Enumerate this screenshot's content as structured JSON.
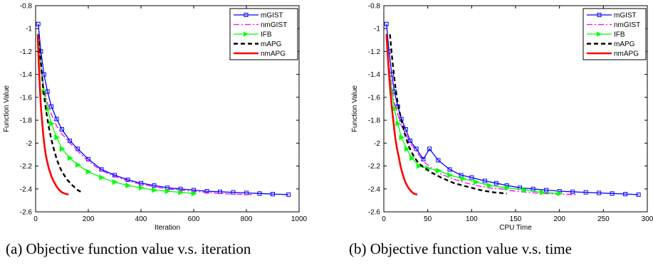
{
  "captions": {
    "a": "(a) Objective function value v.s. iteration",
    "b": "(b) Objective function value v.s. time"
  },
  "chart_data": [
    {
      "type": "line",
      "title": "",
      "xlabel": "Iteration",
      "ylabel": "Function Value",
      "xlim": [
        0,
        1000
      ],
      "ylim": [
        -2.6,
        -0.8
      ],
      "xticks": [
        0,
        200,
        400,
        600,
        800,
        1000
      ],
      "yticks": [
        -2.6,
        -2.4,
        -2.2,
        -2,
        -1.8,
        -1.6,
        -1.4,
        -1.2,
        -1,
        -0.8
      ],
      "xtick_labels": [
        "0",
        "200",
        "400",
        "600",
        "800",
        "1000"
      ],
      "ytick_labels": [
        "-2.6",
        "-2.4",
        "-2.2",
        "-2",
        "-1.8",
        "-1.6",
        "-1.4",
        "-1.2",
        "-1",
        "-0.8"
      ],
      "grid": false,
      "legend_position": "top-right",
      "series": [
        {
          "name": "mGIST",
          "color": "#0000ff",
          "dash": "solid",
          "marker": "square",
          "x": [
            10,
            20,
            32,
            45,
            60,
            80,
            100,
            130,
            160,
            200,
            250,
            300,
            350,
            400,
            450,
            500,
            550,
            600,
            650,
            700,
            750,
            800,
            850,
            900,
            960
          ],
          "y": [
            -0.96,
            -1.2,
            -1.4,
            -1.55,
            -1.68,
            -1.79,
            -1.88,
            -1.98,
            -2.05,
            -2.14,
            -2.23,
            -2.28,
            -2.32,
            -2.35,
            -2.37,
            -2.39,
            -2.4,
            -2.41,
            -2.42,
            -2.425,
            -2.43,
            -2.435,
            -2.44,
            -2.445,
            -2.45
          ]
        },
        {
          "name": "nmGIST",
          "color": "#ff00ff",
          "dash": "dashdot",
          "marker": "none",
          "x": [
            10,
            20,
            30,
            45,
            60,
            80,
            100,
            130,
            160,
            200,
            250,
            300,
            350,
            400,
            450,
            500,
            550,
            600,
            650,
            700,
            750,
            820
          ],
          "y": [
            -1.05,
            -1.32,
            -1.5,
            -1.65,
            -1.75,
            -1.85,
            -1.92,
            -2.0,
            -2.07,
            -2.16,
            -2.24,
            -2.29,
            -2.33,
            -2.36,
            -2.38,
            -2.4,
            -2.41,
            -2.42,
            -2.43,
            -2.44,
            -2.445,
            -2.45
          ]
        },
        {
          "name": "IFB",
          "color": "#00ff00",
          "dash": "solid",
          "marker": "triangle-right",
          "x": [
            10,
            20,
            32,
            45,
            60,
            80,
            100,
            130,
            160,
            200,
            250,
            300,
            350,
            400,
            450,
            500,
            550,
            600
          ],
          "y": [
            -1.04,
            -1.35,
            -1.55,
            -1.7,
            -1.83,
            -1.95,
            -2.05,
            -2.13,
            -2.19,
            -2.25,
            -2.3,
            -2.34,
            -2.37,
            -2.39,
            -2.41,
            -2.42,
            -2.43,
            -2.44
          ]
        },
        {
          "name": "mAPG",
          "color": "#000000",
          "dash": "dash",
          "marker": "none",
          "x": [
            10,
            20,
            30,
            40,
            50,
            60,
            70,
            80,
            90,
            100,
            120,
            140,
            160,
            175
          ],
          "y": [
            -1.05,
            -1.3,
            -1.55,
            -1.72,
            -1.86,
            -1.97,
            -2.06,
            -2.14,
            -2.2,
            -2.25,
            -2.32,
            -2.37,
            -2.41,
            -2.43
          ]
        },
        {
          "name": "nmAPG",
          "color": "#ff0000",
          "dash": "solid",
          "marker": "none",
          "x": [
            8,
            12,
            16,
            20,
            25,
            30,
            35,
            40,
            50,
            60,
            70,
            80,
            90,
            100,
            110,
            125
          ],
          "y": [
            -1.05,
            -1.3,
            -1.5,
            -1.68,
            -1.82,
            -1.95,
            -2.05,
            -2.12,
            -2.22,
            -2.29,
            -2.34,
            -2.38,
            -2.41,
            -2.43,
            -2.44,
            -2.45
          ]
        }
      ]
    },
    {
      "type": "line",
      "title": "",
      "xlabel": "CPU Time",
      "ylabel": "Function Value",
      "xlim": [
        0,
        300
      ],
      "ylim": [
        -2.6,
        -0.8
      ],
      "xticks": [
        0,
        50,
        100,
        150,
        200,
        250,
        300
      ],
      "yticks": [
        -2.6,
        -2.4,
        -2.2,
        -2,
        -1.8,
        -1.6,
        -1.4,
        -1.2,
        -1,
        -0.8
      ],
      "xtick_labels": [
        "0",
        "50",
        "100",
        "150",
        "200",
        "250",
        "300"
      ],
      "ytick_labels": [
        "-2.6",
        "-2.4",
        "-2.2",
        "-2",
        "-1.8",
        "-1.6",
        "-1.4",
        "-1.2",
        "-1",
        "-0.8"
      ],
      "grid": false,
      "legend_position": "top-right",
      "series": [
        {
          "name": "mGIST",
          "color": "#0000ff",
          "dash": "solid",
          "marker": "square",
          "x": [
            3,
            6,
            9,
            12,
            16,
            20,
            25,
            30,
            37,
            45,
            52,
            62,
            75,
            88,
            100,
            115,
            128,
            140,
            155,
            170,
            185,
            200,
            215,
            230,
            245,
            260,
            275,
            290
          ],
          "y": [
            -0.96,
            -1.2,
            -1.4,
            -1.55,
            -1.68,
            -1.79,
            -1.88,
            -1.98,
            -2.05,
            -2.14,
            -2.05,
            -2.15,
            -2.23,
            -2.28,
            -2.3,
            -2.33,
            -2.35,
            -2.37,
            -2.39,
            -2.4,
            -2.41,
            -2.42,
            -2.425,
            -2.43,
            -2.435,
            -2.44,
            -2.445,
            -2.45
          ]
        },
        {
          "name": "nmGIST",
          "color": "#ff00ff",
          "dash": "dashdot",
          "marker": "none",
          "x": [
            3,
            6,
            9,
            12,
            16,
            20,
            25,
            30,
            37,
            45,
            55,
            65,
            78,
            90,
            105,
            120,
            135,
            150,
            165,
            180,
            200,
            220
          ],
          "y": [
            -1.05,
            -1.32,
            -1.5,
            -1.65,
            -1.75,
            -1.85,
            -1.92,
            -2.0,
            -2.07,
            -2.16,
            -2.22,
            -2.27,
            -2.31,
            -2.34,
            -2.37,
            -2.39,
            -2.4,
            -2.42,
            -2.43,
            -2.44,
            -2.445,
            -2.45
          ]
        },
        {
          "name": "IFB",
          "color": "#00ff00",
          "dash": "solid",
          "marker": "triangle-right",
          "x": [
            3,
            6,
            9,
            12,
            16,
            20,
            26,
            32,
            40,
            50,
            62,
            75,
            90,
            105,
            120,
            140,
            160,
            180,
            200
          ],
          "y": [
            -1.04,
            -1.35,
            -1.55,
            -1.7,
            -1.83,
            -1.95,
            -2.05,
            -2.13,
            -2.2,
            -2.22,
            -2.24,
            -2.28,
            -2.31,
            -2.34,
            -2.37,
            -2.39,
            -2.41,
            -2.43,
            -2.44
          ]
        },
        {
          "name": "mAPG",
          "color": "#000000",
          "dash": "dash",
          "marker": "none",
          "x": [
            7,
            10,
            13,
            16,
            20,
            24,
            28,
            33,
            38,
            45,
            55,
            65,
            80,
            95,
            110,
            125,
            140
          ],
          "y": [
            -1.05,
            -1.3,
            -1.5,
            -1.66,
            -1.8,
            -1.92,
            -2.02,
            -2.1,
            -2.16,
            -2.21,
            -2.26,
            -2.3,
            -2.35,
            -2.38,
            -2.41,
            -2.43,
            -2.44
          ]
        },
        {
          "name": "nmAPG",
          "color": "#ff0000",
          "dash": "solid",
          "marker": "none",
          "x": [
            3,
            5,
            7,
            9,
            11,
            13,
            15,
            17,
            19,
            21,
            23,
            25,
            28,
            31,
            34,
            38
          ],
          "y": [
            -1.05,
            -1.3,
            -1.5,
            -1.68,
            -1.82,
            -1.95,
            -2.05,
            -2.12,
            -2.2,
            -2.26,
            -2.31,
            -2.35,
            -2.39,
            -2.42,
            -2.44,
            -2.45
          ]
        }
      ]
    }
  ]
}
